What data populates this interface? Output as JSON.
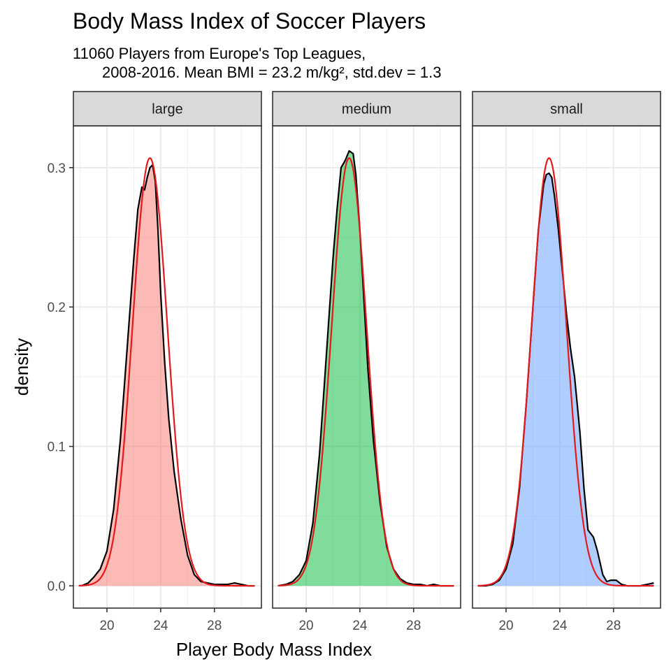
{
  "chart_data": {
    "type": "area",
    "title": "Body Mass Index of Soccer Players",
    "subtitle_lines": [
      "11060 Players from Europe's Top Leagues,",
      "2008-2016. Mean BMI = 23.2 m/kg², std.dev = 1.3"
    ],
    "xlabel": "Player Body Mass Index",
    "ylabel": "density",
    "xlim": [
      17.5,
      31.5
    ],
    "ylim": [
      -0.016,
      0.33
    ],
    "x_ticks": [
      20,
      24,
      28
    ],
    "x_tick_labels": [
      "20",
      "24",
      "28"
    ],
    "y_ticks": [
      0.0,
      0.1,
      0.2,
      0.3
    ],
    "y_tick_labels": [
      "0.0",
      "0.1",
      "0.2",
      "0.3"
    ],
    "grid": true,
    "normal_curve": {
      "mean": 23.2,
      "sd": 1.3,
      "color": "#e31a1c"
    },
    "series": [
      {
        "name": "large",
        "fill": "#f8766d",
        "x": [
          18.1,
          18.6,
          19.0,
          19.5,
          20.0,
          20.5,
          21.0,
          21.5,
          22.0,
          22.3,
          22.6,
          22.8,
          23.0,
          23.2,
          23.4,
          23.6,
          23.8,
          24.0,
          24.3,
          24.6,
          25.0,
          25.5,
          26.0,
          26.5,
          27.0,
          27.5,
          28.0,
          28.5,
          29.0,
          29.5,
          30.0,
          30.5,
          31.0
        ],
        "density": [
          0.0,
          0.002,
          0.006,
          0.012,
          0.025,
          0.055,
          0.105,
          0.17,
          0.235,
          0.27,
          0.286,
          0.284,
          0.293,
          0.3,
          0.302,
          0.29,
          0.255,
          0.21,
          0.16,
          0.12,
          0.082,
          0.048,
          0.022,
          0.008,
          0.003,
          0.002,
          0.001,
          0.001,
          0.001,
          0.002,
          0.001,
          0.0,
          0.0
        ]
      },
      {
        "name": "medium",
        "fill": "#00ba38",
        "x": [
          17.9,
          18.5,
          19.0,
          19.5,
          20.0,
          20.5,
          21.0,
          21.5,
          22.0,
          22.3,
          22.6,
          22.9,
          23.2,
          23.5,
          23.7,
          24.0,
          24.3,
          24.6,
          25.0,
          25.5,
          26.0,
          26.5,
          27.0,
          27.5,
          28.0,
          28.5,
          29.0,
          29.5,
          30.0,
          31.0
        ],
        "density": [
          0.0,
          0.001,
          0.003,
          0.008,
          0.018,
          0.045,
          0.095,
          0.165,
          0.235,
          0.27,
          0.3,
          0.305,
          0.312,
          0.31,
          0.295,
          0.255,
          0.205,
          0.155,
          0.105,
          0.06,
          0.028,
          0.012,
          0.005,
          0.002,
          0.001,
          0.001,
          0.0,
          0.001,
          0.0,
          0.0
        ]
      },
      {
        "name": "small",
        "fill": "#619cff",
        "x": [
          17.9,
          18.5,
          19.0,
          19.5,
          20.0,
          20.5,
          21.0,
          21.5,
          22.0,
          22.4,
          22.8,
          23.0,
          23.2,
          23.4,
          23.6,
          23.9,
          24.2,
          24.5,
          24.8,
          25.1,
          25.5,
          25.8,
          26.1,
          26.5,
          26.8,
          27.2,
          27.5,
          27.8,
          28.2,
          28.6,
          29.0,
          29.5,
          30.0,
          30.5,
          31.0
        ],
        "density": [
          0.0,
          0.0,
          0.001,
          0.004,
          0.012,
          0.03,
          0.07,
          0.13,
          0.2,
          0.255,
          0.288,
          0.295,
          0.296,
          0.293,
          0.28,
          0.255,
          0.225,
          0.195,
          0.17,
          0.15,
          0.11,
          0.07,
          0.04,
          0.035,
          0.025,
          0.008,
          0.003,
          0.004,
          0.004,
          0.001,
          0.0,
          0.0,
          0.0,
          0.001,
          0.002
        ]
      }
    ]
  }
}
